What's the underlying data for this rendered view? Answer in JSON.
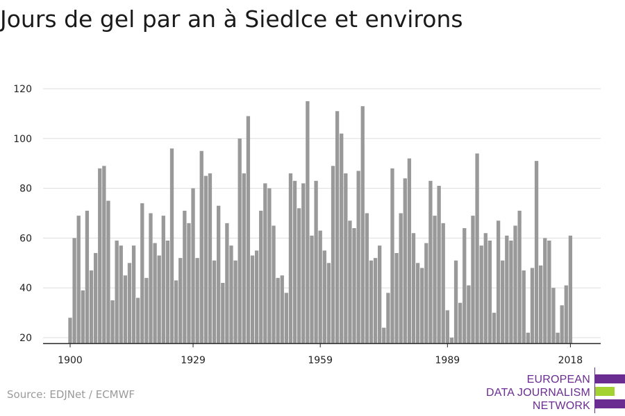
{
  "header": {
    "title": "Jours de gel par an à Siedlce et environs"
  },
  "footer": {
    "source": "Source: EDJNet / ECMWF",
    "logo_lines": [
      "EUROPEAN",
      "DATA JOURNALISM",
      "NETWORK"
    ],
    "logo_colors": [
      "#6a2c91",
      "#a4d233",
      "#6a2c91"
    ]
  },
  "chart_data": {
    "type": "bar",
    "title": "Jours de gel par an à Siedlce et environs",
    "xlabel": "",
    "ylabel": "",
    "ylim": [
      17,
      125
    ],
    "xlim": [
      1898.5,
      2021.5
    ],
    "y_ticks": [
      20,
      40,
      60,
      80,
      100,
      120
    ],
    "x_ticks": [
      1900,
      1929,
      1959,
      1989,
      2018
    ],
    "grid": true,
    "bar_color": "#999999",
    "years": [
      1900,
      1901,
      1902,
      1903,
      1904,
      1905,
      1906,
      1907,
      1908,
      1909,
      1910,
      1911,
      1912,
      1913,
      1914,
      1915,
      1916,
      1917,
      1918,
      1919,
      1920,
      1921,
      1922,
      1923,
      1924,
      1925,
      1926,
      1927,
      1928,
      1929,
      1930,
      1931,
      1932,
      1933,
      1934,
      1935,
      1936,
      1937,
      1938,
      1939,
      1940,
      1941,
      1942,
      1943,
      1944,
      1945,
      1946,
      1947,
      1948,
      1949,
      1950,
      1951,
      1952,
      1953,
      1954,
      1955,
      1956,
      1957,
      1958,
      1959,
      1960,
      1961,
      1962,
      1963,
      1964,
      1965,
      1966,
      1967,
      1968,
      1969,
      1970,
      1971,
      1972,
      1973,
      1974,
      1975,
      1976,
      1977,
      1978,
      1979,
      1980,
      1981,
      1982,
      1983,
      1984,
      1985,
      1986,
      1987,
      1988,
      1989,
      1990,
      1991,
      1992,
      1993,
      1994,
      1995,
      1996,
      1997,
      1998,
      1999,
      2000,
      2001,
      2002,
      2003,
      2004,
      2005,
      2006,
      2007,
      2008,
      2009,
      2010,
      2011,
      2012,
      2013,
      2014,
      2015,
      2016,
      2017,
      2018
    ],
    "values": [
      28,
      60,
      69,
      39,
      71,
      47,
      54,
      88,
      89,
      75,
      35,
      59,
      57,
      45,
      50,
      57,
      36,
      74,
      44,
      70,
      58,
      53,
      69,
      59,
      96,
      43,
      52,
      71,
      66,
      80,
      52,
      95,
      85,
      86,
      51,
      73,
      42,
      66,
      57,
      51,
      100,
      86,
      109,
      53,
      55,
      71,
      82,
      80,
      65,
      44,
      45,
      38,
      86,
      83,
      72,
      82,
      115,
      61,
      83,
      63,
      55,
      50,
      89,
      111,
      102,
      86,
      67,
      64,
      87,
      113,
      70,
      51,
      52,
      57,
      24,
      38,
      88,
      54,
      70,
      84,
      92,
      62,
      50,
      48,
      58,
      83,
      69,
      81,
      66,
      31,
      20,
      51,
      34,
      64,
      41,
      69,
      94,
      57,
      62,
      59,
      30,
      67,
      51,
      61,
      59,
      65,
      71,
      47,
      22,
      48,
      91,
      49,
      60,
      59,
      40,
      22,
      33,
      41,
      61
    ]
  }
}
